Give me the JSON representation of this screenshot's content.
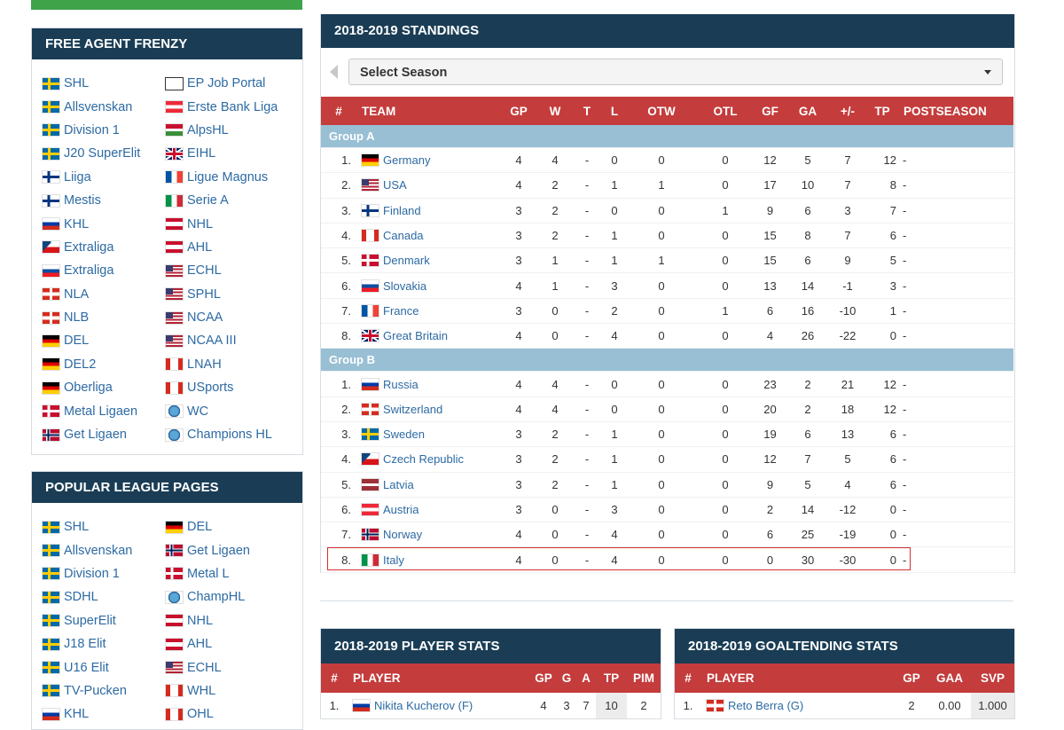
{
  "sidebar": {
    "free_agent": {
      "title": "FREE AGENT FRENZY",
      "items": [
        {
          "label": "SHL",
          "flag": "sweden"
        },
        {
          "label": "EP Job Portal",
          "flag": "ep-logo"
        },
        {
          "label": "Allsvenskan",
          "flag": "sweden"
        },
        {
          "label": "Erste Bank Liga",
          "flag": "austria"
        },
        {
          "label": "Division 1",
          "flag": "sweden"
        },
        {
          "label": "AlpsHL",
          "flag": "alps"
        },
        {
          "label": "J20 SuperElit",
          "flag": "sweden"
        },
        {
          "label": "EIHL",
          "flag": "uk"
        },
        {
          "label": "Liiga",
          "flag": "finland"
        },
        {
          "label": "Ligue Magnus",
          "flag": "france"
        },
        {
          "label": "Mestis",
          "flag": "finland"
        },
        {
          "label": "Serie A",
          "flag": "italy"
        },
        {
          "label": "KHL",
          "flag": "russia"
        },
        {
          "label": "NHL",
          "flag": "nhl"
        },
        {
          "label": "Extraliga",
          "flag": "czech"
        },
        {
          "label": "AHL",
          "flag": "ahl"
        },
        {
          "label": "Extraliga",
          "flag": "slovakia"
        },
        {
          "label": "ECHL",
          "flag": "usa"
        },
        {
          "label": "NLA",
          "flag": "switzerland"
        },
        {
          "label": "SPHL",
          "flag": "usa"
        },
        {
          "label": "NLB",
          "flag": "switzerland"
        },
        {
          "label": "NCAA",
          "flag": "usa"
        },
        {
          "label": "DEL",
          "flag": "germany"
        },
        {
          "label": "NCAA III",
          "flag": "usa"
        },
        {
          "label": "DEL2",
          "flag": "germany"
        },
        {
          "label": "LNAH",
          "flag": "canada"
        },
        {
          "label": "Oberliga",
          "flag": "germany"
        },
        {
          "label": "USports",
          "flag": "canada"
        },
        {
          "label": "Metal Ligaen",
          "flag": "denmark"
        },
        {
          "label": "WC",
          "flag": "world"
        },
        {
          "label": "Get Ligaen",
          "flag": "norway"
        },
        {
          "label": "Champions HL",
          "flag": "world"
        }
      ]
    },
    "popular": {
      "title": "POPULAR LEAGUE PAGES",
      "items": [
        {
          "label": "SHL",
          "flag": "sweden"
        },
        {
          "label": "DEL",
          "flag": "germany"
        },
        {
          "label": "Allsvenskan",
          "flag": "sweden"
        },
        {
          "label": "Get Ligaen",
          "flag": "norway"
        },
        {
          "label": "Division 1",
          "flag": "sweden"
        },
        {
          "label": "Metal L",
          "flag": "denmark"
        },
        {
          "label": "SDHL",
          "flag": "sweden"
        },
        {
          "label": "ChampHL",
          "flag": "world"
        },
        {
          "label": "SuperElit",
          "flag": "sweden"
        },
        {
          "label": "NHL",
          "flag": "nhl"
        },
        {
          "label": "J18 Elit",
          "flag": "sweden"
        },
        {
          "label": "AHL",
          "flag": "ahl"
        },
        {
          "label": "U16 Elit",
          "flag": "sweden"
        },
        {
          "label": "ECHL",
          "flag": "usa"
        },
        {
          "label": "TV-Pucken",
          "flag": "sweden"
        },
        {
          "label": "WHL",
          "flag": "canada"
        },
        {
          "label": "KHL",
          "flag": "russia"
        },
        {
          "label": "OHL",
          "flag": "canada"
        }
      ]
    }
  },
  "standings": {
    "title": "2018-2019 STANDINGS",
    "season_select": "Select Season",
    "columns": [
      "#",
      "TEAM",
      "GP",
      "W",
      "T",
      "L",
      "OTW",
      "OTL",
      "GF",
      "GA",
      "+/-",
      "TP",
      "POSTSEASON"
    ],
    "groups": [
      {
        "name": "Group A",
        "rows": [
          {
            "rank": "1.",
            "team": "Germany",
            "flag": "germany",
            "gp": "4",
            "w": "4",
            "t": "-",
            "l": "0",
            "otw": "0",
            "otl": "0",
            "gf": "12",
            "ga": "5",
            "pm": "7",
            "tp": "12",
            "post": "-"
          },
          {
            "rank": "2.",
            "team": "USA",
            "flag": "usa",
            "gp": "4",
            "w": "2",
            "t": "-",
            "l": "1",
            "otw": "1",
            "otl": "0",
            "gf": "17",
            "ga": "10",
            "pm": "7",
            "tp": "8",
            "post": "-"
          },
          {
            "rank": "3.",
            "team": "Finland",
            "flag": "finland",
            "gp": "3",
            "w": "2",
            "t": "-",
            "l": "0",
            "otw": "0",
            "otl": "1",
            "gf": "9",
            "ga": "6",
            "pm": "3",
            "tp": "7",
            "post": "-"
          },
          {
            "rank": "4.",
            "team": "Canada",
            "flag": "canada",
            "gp": "3",
            "w": "2",
            "t": "-",
            "l": "1",
            "otw": "0",
            "otl": "0",
            "gf": "15",
            "ga": "8",
            "pm": "7",
            "tp": "6",
            "post": "-"
          },
          {
            "rank": "5.",
            "team": "Denmark",
            "flag": "denmark",
            "gp": "3",
            "w": "1",
            "t": "-",
            "l": "1",
            "otw": "1",
            "otl": "0",
            "gf": "15",
            "ga": "6",
            "pm": "9",
            "tp": "5",
            "post": "-"
          },
          {
            "rank": "6.",
            "team": "Slovakia",
            "flag": "slovakia",
            "gp": "4",
            "w": "1",
            "t": "-",
            "l": "3",
            "otw": "0",
            "otl": "0",
            "gf": "13",
            "ga": "14",
            "pm": "-1",
            "tp": "3",
            "post": "-"
          },
          {
            "rank": "7.",
            "team": "France",
            "flag": "france",
            "gp": "3",
            "w": "0",
            "t": "-",
            "l": "2",
            "otw": "0",
            "otl": "1",
            "gf": "6",
            "ga": "16",
            "pm": "-10",
            "tp": "1",
            "post": "-"
          },
          {
            "rank": "8.",
            "team": "Great Britain",
            "flag": "uk",
            "gp": "4",
            "w": "0",
            "t": "-",
            "l": "4",
            "otw": "0",
            "otl": "0",
            "gf": "4",
            "ga": "26",
            "pm": "-22",
            "tp": "0",
            "post": "-"
          }
        ]
      },
      {
        "name": "Group B",
        "rows": [
          {
            "rank": "1.",
            "team": "Russia",
            "flag": "russia",
            "gp": "4",
            "w": "4",
            "t": "-",
            "l": "0",
            "otw": "0",
            "otl": "0",
            "gf": "23",
            "ga": "2",
            "pm": "21",
            "tp": "12",
            "post": "-"
          },
          {
            "rank": "2.",
            "team": "Switzerland",
            "flag": "switzerland",
            "gp": "4",
            "w": "4",
            "t": "-",
            "l": "0",
            "otw": "0",
            "otl": "0",
            "gf": "20",
            "ga": "2",
            "pm": "18",
            "tp": "12",
            "post": "-"
          },
          {
            "rank": "3.",
            "team": "Sweden",
            "flag": "sweden",
            "gp": "3",
            "w": "2",
            "t": "-",
            "l": "1",
            "otw": "0",
            "otl": "0",
            "gf": "19",
            "ga": "6",
            "pm": "13",
            "tp": "6",
            "post": "-"
          },
          {
            "rank": "4.",
            "team": "Czech Republic",
            "flag": "czech",
            "gp": "3",
            "w": "2",
            "t": "-",
            "l": "1",
            "otw": "0",
            "otl": "0",
            "gf": "12",
            "ga": "7",
            "pm": "5",
            "tp": "6",
            "post": "-"
          },
          {
            "rank": "5.",
            "team": "Latvia",
            "flag": "latvia",
            "gp": "3",
            "w": "2",
            "t": "-",
            "l": "1",
            "otw": "0",
            "otl": "0",
            "gf": "9",
            "ga": "5",
            "pm": "4",
            "tp": "6",
            "post": "-"
          },
          {
            "rank": "6.",
            "team": "Austria",
            "flag": "austria",
            "gp": "3",
            "w": "0",
            "t": "-",
            "l": "3",
            "otw": "0",
            "otl": "0",
            "gf": "2",
            "ga": "14",
            "pm": "-12",
            "tp": "0",
            "post": "-"
          },
          {
            "rank": "7.",
            "team": "Norway",
            "flag": "norway",
            "gp": "4",
            "w": "0",
            "t": "-",
            "l": "4",
            "otw": "0",
            "otl": "0",
            "gf": "6",
            "ga": "25",
            "pm": "-19",
            "tp": "0",
            "post": "-"
          },
          {
            "rank": "8.",
            "team": "Italy",
            "flag": "italy",
            "gp": "4",
            "w": "0",
            "t": "-",
            "l": "4",
            "otw": "0",
            "otl": "0",
            "gf": "0",
            "ga": "30",
            "pm": "-30",
            "tp": "0",
            "post": "-",
            "highlighted": true
          }
        ]
      }
    ]
  },
  "player_stats": {
    "title": "2018-2019 PLAYER STATS",
    "columns": [
      "#",
      "PLAYER",
      "GP",
      "G",
      "A",
      "TP",
      "PIM"
    ],
    "rows": [
      {
        "rank": "1.",
        "player": "Nikita Kucherov (F)",
        "flag": "russia",
        "gp": "4",
        "g": "3",
        "a": "7",
        "tp": "10",
        "pim": "2"
      }
    ]
  },
  "goalie_stats": {
    "title": "2018-2019 GOALTENDING STATS",
    "columns": [
      "#",
      "PLAYER",
      "GP",
      "GAA",
      "SVP"
    ],
    "rows": [
      {
        "rank": "1.",
        "player": "Reto Berra (G)",
        "flag": "switzerland",
        "gp": "2",
        "gaa": "0.00",
        "svp": "1.000"
      }
    ]
  },
  "colors": {
    "header_navy": "#1a3d55",
    "table_header_red": "#c43c3c",
    "group_row_blue": "#98bfd3",
    "link_blue": "#2d6aa3",
    "highlight_red": "#d32f2f",
    "top_bar_green": "#3fa34a"
  }
}
